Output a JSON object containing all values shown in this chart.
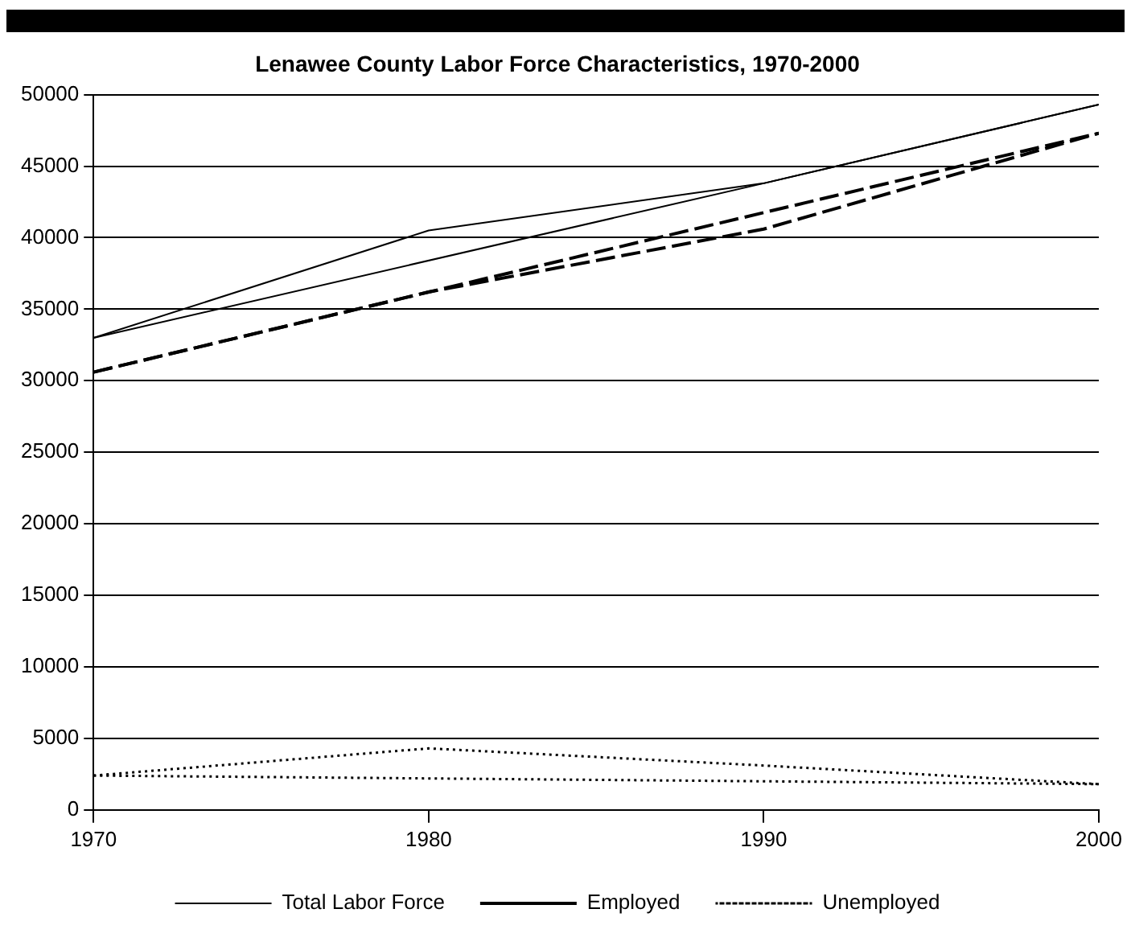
{
  "chart_data": {
    "type": "line",
    "title": "Lenawee County Labor Force Characteristics, 1970-2000",
    "xlim": [
      1970,
      2000
    ],
    "xticks": [
      1970,
      1980,
      1990,
      2000
    ],
    "ylim": [
      0,
      50000
    ],
    "yticks": [
      0,
      5000,
      10000,
      15000,
      20000,
      25000,
      30000,
      35000,
      40000,
      45000,
      50000
    ],
    "grid": "y",
    "legend": "bottom",
    "marker": "none",
    "series": [
      {
        "name": "Total Labor Force",
        "color": "#000000",
        "line_style": "solid",
        "x": [
          1970,
          1980,
          1990,
          2000
        ],
        "values": [
          33000,
          40500,
          43800,
          49300
        ]
      },
      {
        "name": "Employed",
        "color": "#000000",
        "line_style": "dashed",
        "x": [
          1970,
          1980,
          1990,
          2000
        ],
        "values": [
          30600,
          36200,
          40600,
          47300
        ]
      },
      {
        "name": "Unemployed",
        "color": "#000000",
        "line_style": "dotted",
        "x": [
          1970,
          1980,
          1990,
          2000
        ],
        "values": [
          2400,
          4300,
          3100,
          1800
        ]
      },
      {
        "color": "#000000",
        "line_style": "solid",
        "x": [
          1970,
          1990,
          2000
        ],
        "values": [
          33000,
          43800,
          49300
        ]
      },
      {
        "color": "#000000",
        "line_style": "dashed",
        "x": [
          1970,
          1980,
          2000
        ],
        "values": [
          30600,
          36200,
          47300
        ]
      },
      {
        "color": "#000000",
        "line_style": "dotted",
        "x": [
          1970,
          2000
        ],
        "values": [
          2400,
          1800
        ]
      }
    ]
  }
}
